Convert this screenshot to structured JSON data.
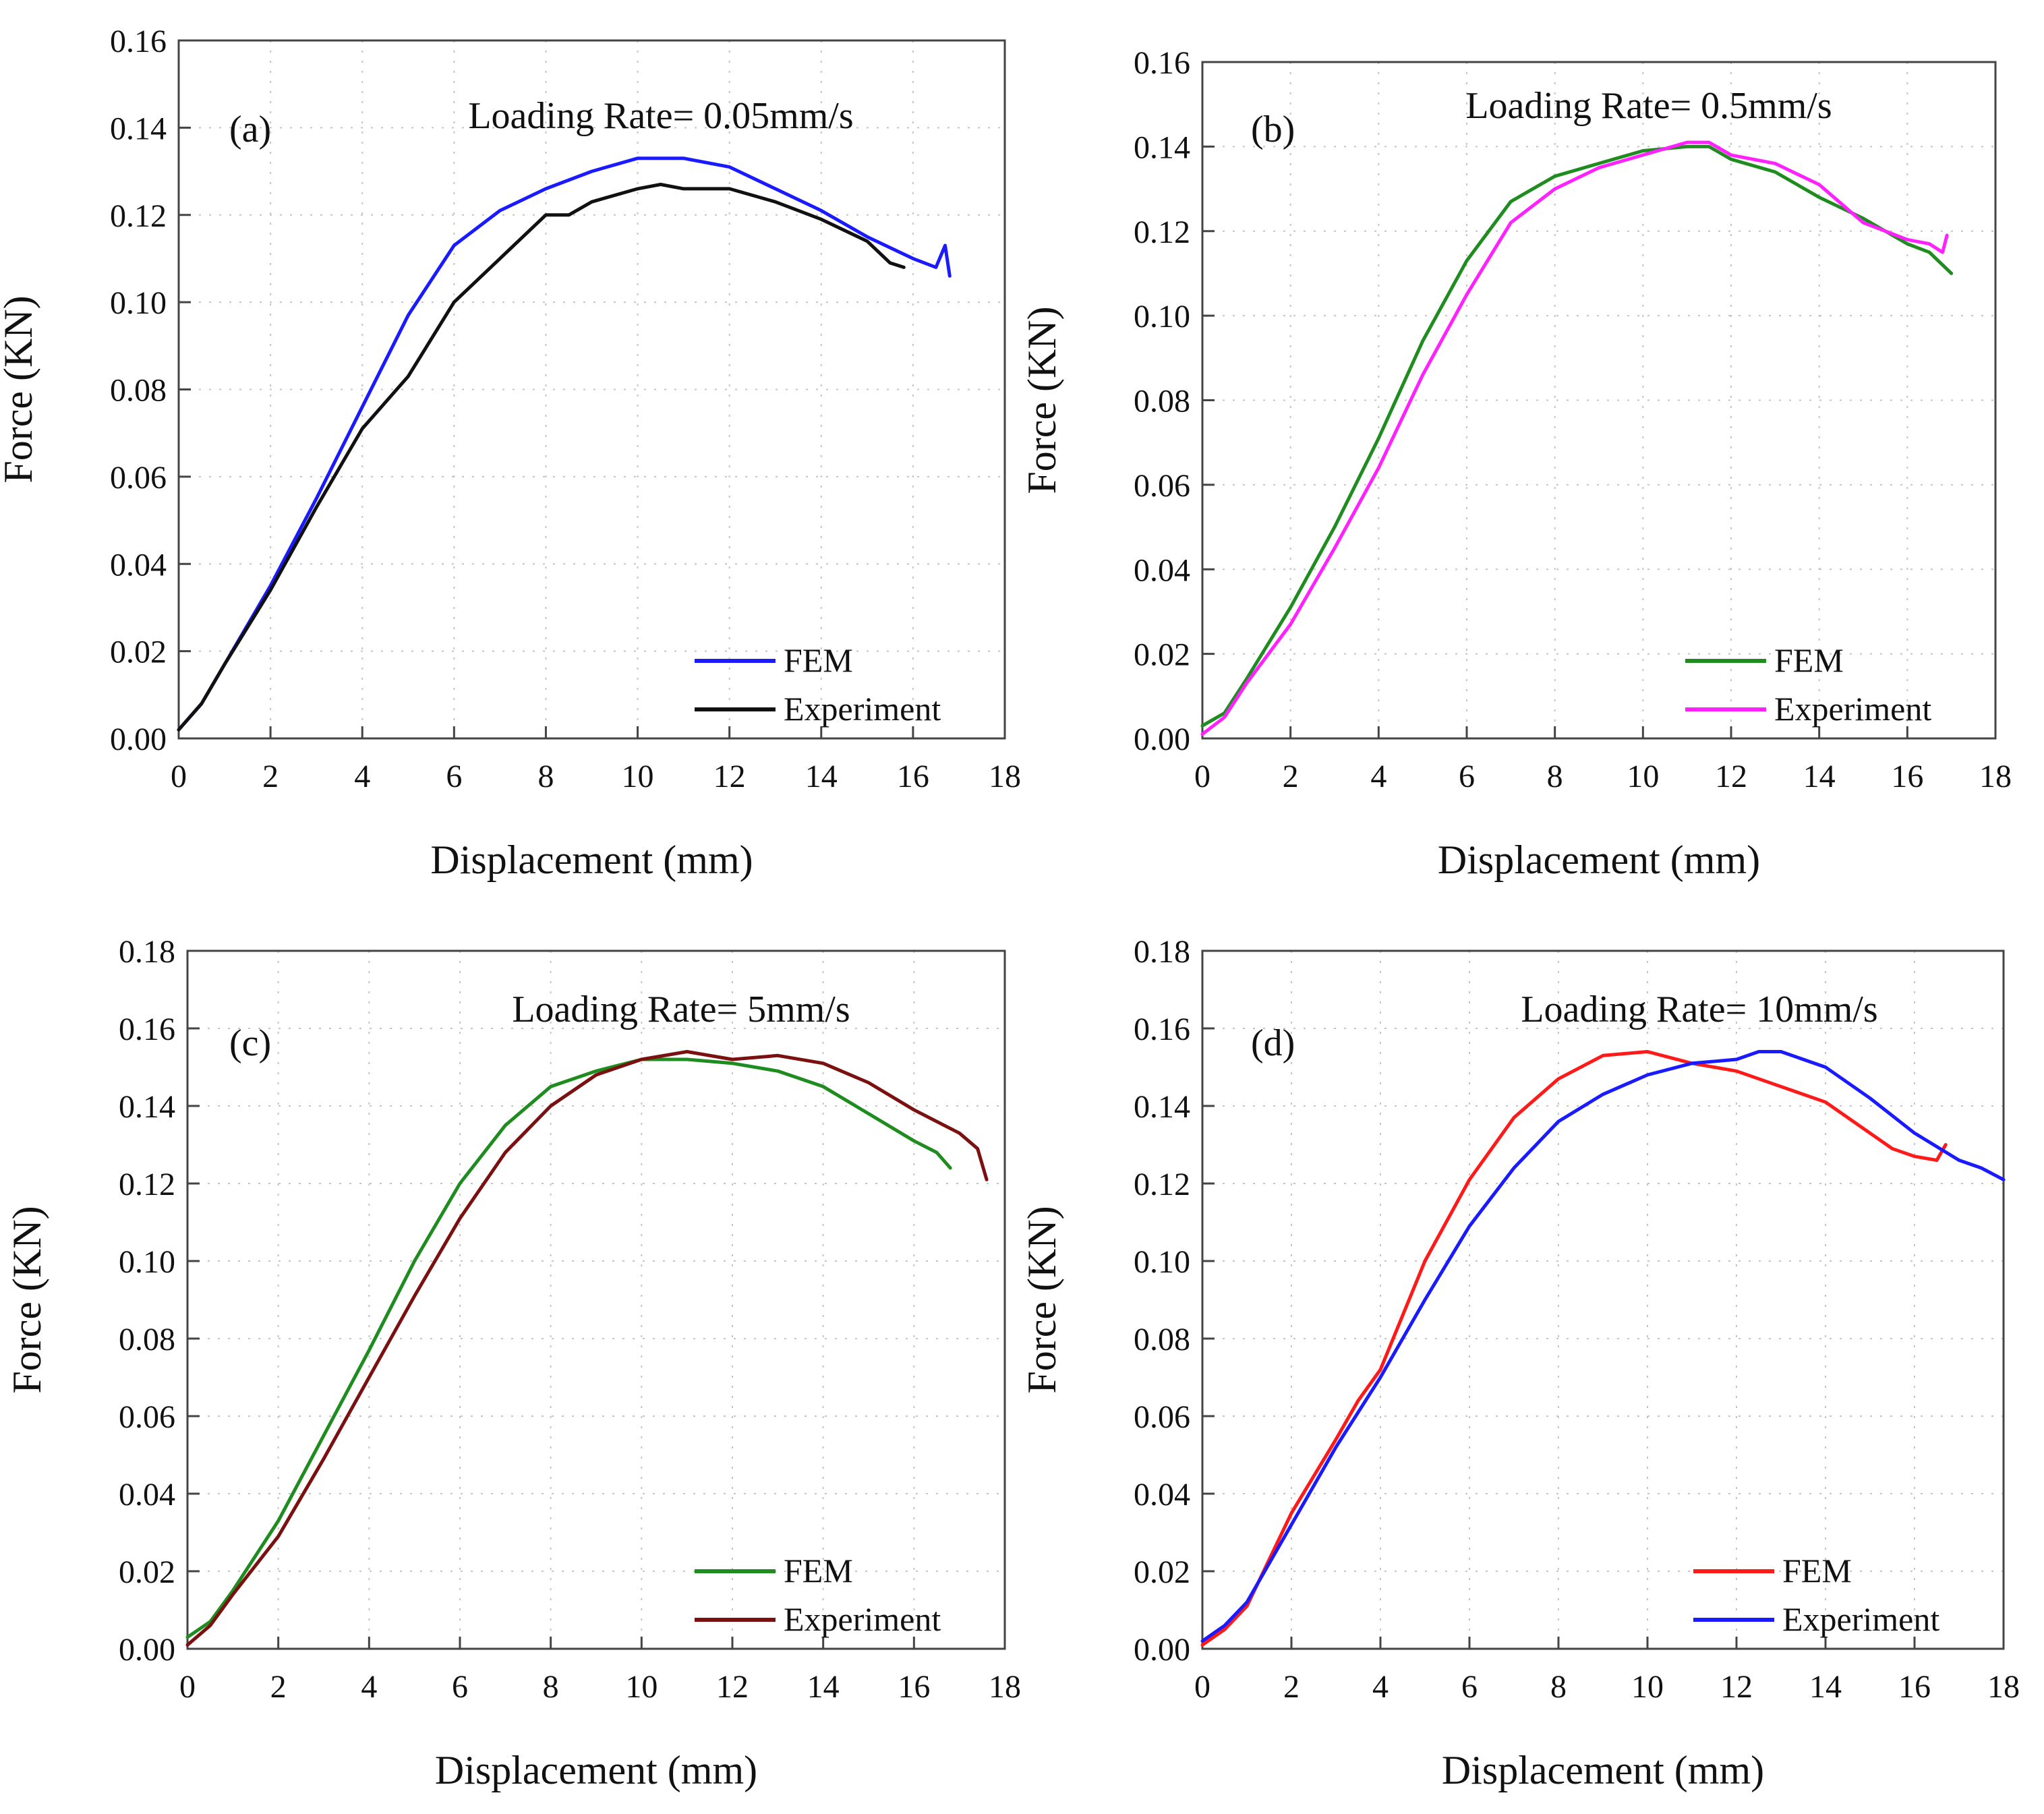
{
  "chart_data": [
    {
      "panel_label": "(a)",
      "type": "line",
      "title": "Loading Rate= 0.05mm/s",
      "xlabel": "Displacement (mm)",
      "ylabel": "Force (KN)",
      "xlim": [
        0,
        18
      ],
      "ylim": [
        0,
        0.16
      ],
      "xticks": [
        "0",
        "2",
        "4",
        "6",
        "8",
        "10",
        "12",
        "14",
        "16",
        "18"
      ],
      "yticks": [
        "0.00",
        "0.02",
        "0.04",
        "0.06",
        "0.08",
        "0.10",
        "0.12",
        "0.14",
        "0.16"
      ],
      "grid": true,
      "legend_position": "bottom-right",
      "series": [
        {
          "name": "FEM",
          "color": "#1a1aff",
          "x": [
            0,
            0.5,
            1,
            2,
            3,
            4,
            5,
            6,
            7,
            8,
            9,
            10,
            11,
            12,
            13,
            14,
            15,
            16,
            16.5,
            16.7,
            16.8
          ],
          "y": [
            0.002,
            0.008,
            0.017,
            0.035,
            0.055,
            0.076,
            0.097,
            0.113,
            0.121,
            0.126,
            0.13,
            0.133,
            0.133,
            0.131,
            0.126,
            0.121,
            0.115,
            0.11,
            0.108,
            0.113,
            0.106
          ]
        },
        {
          "name": "Experiment",
          "color": "#111111",
          "x": [
            0,
            0.5,
            1,
            2,
            3,
            4,
            5,
            6,
            7,
            8,
            8.5,
            9,
            10,
            10.5,
            11,
            12,
            13,
            14,
            15,
            15.5,
            15.8
          ],
          "y": [
            0.002,
            0.008,
            0.017,
            0.034,
            0.053,
            0.071,
            0.083,
            0.1,
            0.11,
            0.12,
            0.12,
            0.123,
            0.126,
            0.127,
            0.126,
            0.126,
            0.123,
            0.119,
            0.114,
            0.109,
            0.108
          ]
        }
      ]
    },
    {
      "panel_label": "(b)",
      "type": "line",
      "title": "Loading Rate= 0.5mm/s",
      "xlabel": "Displacement (mm)",
      "ylabel": "Force (KN)",
      "xlim": [
        0,
        18
      ],
      "ylim": [
        0,
        0.16
      ],
      "xticks": [
        "0",
        "2",
        "4",
        "6",
        "8",
        "10",
        "12",
        "14",
        "16",
        "18"
      ],
      "yticks": [
        "0.00",
        "0.02",
        "0.04",
        "0.06",
        "0.08",
        "0.10",
        "0.12",
        "0.14",
        "0.16"
      ],
      "grid": true,
      "legend_position": "bottom-right",
      "series": [
        {
          "name": "FEM",
          "color": "#1f8c1f",
          "x": [
            0,
            0.5,
            1,
            2,
            3,
            4,
            5,
            6,
            7,
            8,
            9,
            10,
            11,
            11.5,
            12,
            13,
            14,
            15,
            16,
            16.5,
            17
          ],
          "y": [
            0.003,
            0.006,
            0.014,
            0.031,
            0.05,
            0.071,
            0.094,
            0.113,
            0.127,
            0.133,
            0.136,
            0.139,
            0.14,
            0.14,
            0.137,
            0.134,
            0.128,
            0.123,
            0.117,
            0.115,
            0.11
          ]
        },
        {
          "name": "Experiment",
          "color": "#ff22ff",
          "x": [
            0,
            0.5,
            1,
            2,
            3,
            4,
            5,
            6,
            7,
            8,
            9,
            10,
            11,
            11.5,
            12,
            13,
            14,
            15,
            16,
            16.5,
            16.8,
            16.9
          ],
          "y": [
            0.001,
            0.005,
            0.013,
            0.027,
            0.045,
            0.064,
            0.086,
            0.105,
            0.122,
            0.13,
            0.135,
            0.138,
            0.141,
            0.141,
            0.138,
            0.136,
            0.131,
            0.122,
            0.118,
            0.117,
            0.115,
            0.119
          ]
        }
      ]
    },
    {
      "panel_label": "(c)",
      "type": "line",
      "title": "Loading Rate= 5mm/s",
      "xlabel": "Displacement (mm)",
      "ylabel": "Force (KN)",
      "xlim": [
        0,
        18
      ],
      "ylim": [
        0,
        0.18
      ],
      "xticks": [
        "0",
        "2",
        "4",
        "6",
        "8",
        "10",
        "12",
        "14",
        "16",
        "18"
      ],
      "yticks": [
        "0.00",
        "0.02",
        "0.04",
        "0.06",
        "0.08",
        "0.10",
        "0.12",
        "0.14",
        "0.16",
        "0.18"
      ],
      "grid": true,
      "legend_position": "bottom-right",
      "series": [
        {
          "name": "FEM",
          "color": "#1f8c1f",
          "x": [
            0,
            0.5,
            1,
            2,
            3,
            4,
            5,
            6,
            7,
            8,
            9,
            10,
            11,
            12,
            13,
            14,
            15,
            16,
            16.5,
            16.8
          ],
          "y": [
            0.003,
            0.007,
            0.015,
            0.033,
            0.055,
            0.077,
            0.1,
            0.12,
            0.135,
            0.145,
            0.149,
            0.152,
            0.152,
            0.151,
            0.149,
            0.145,
            0.138,
            0.131,
            0.128,
            0.124
          ]
        },
        {
          "name": "Experiment",
          "color": "#7a1010",
          "x": [
            0,
            0.5,
            1,
            2,
            3,
            4,
            5,
            6,
            7,
            8,
            9,
            10,
            11,
            12,
            13,
            14,
            15,
            16,
            17,
            17.4,
            17.6
          ],
          "y": [
            0.001,
            0.006,
            0.014,
            0.029,
            0.049,
            0.07,
            0.091,
            0.111,
            0.128,
            0.14,
            0.148,
            0.152,
            0.154,
            0.152,
            0.153,
            0.151,
            0.146,
            0.139,
            0.133,
            0.129,
            0.121
          ]
        }
      ]
    },
    {
      "panel_label": "(d)",
      "type": "line",
      "title": "Loading Rate= 10mm/s",
      "xlabel": "Displacement (mm)",
      "ylabel": "Force (KN)",
      "xlim": [
        0,
        18
      ],
      "ylim": [
        0,
        0.18
      ],
      "xticks": [
        "0",
        "2",
        "4",
        "6",
        "8",
        "10",
        "12",
        "14",
        "16",
        "18"
      ],
      "yticks": [
        "0.00",
        "0.02",
        "0.04",
        "0.06",
        "0.08",
        "0.10",
        "0.12",
        "0.14",
        "0.16",
        "0.18"
      ],
      "grid": true,
      "legend_position": "bottom-right",
      "series": [
        {
          "name": "FEM",
          "color": "#ff1a1a",
          "x": [
            0,
            0.5,
            1,
            2,
            3,
            3.5,
            4,
            5,
            6,
            7,
            8,
            9,
            10,
            11,
            12,
            13,
            14,
            15,
            15.5,
            16,
            16.5,
            16.7
          ],
          "y": [
            0.001,
            0.005,
            0.011,
            0.035,
            0.054,
            0.064,
            0.072,
            0.1,
            0.121,
            0.137,
            0.147,
            0.153,
            0.154,
            0.151,
            0.149,
            0.145,
            0.141,
            0.133,
            0.129,
            0.127,
            0.126,
            0.13
          ]
        },
        {
          "name": "Experiment",
          "color": "#1a1aff",
          "x": [
            0,
            0.5,
            1,
            2,
            3,
            4,
            5,
            6,
            7,
            8,
            9,
            10,
            11,
            12,
            12.5,
            13,
            14,
            15,
            16,
            17,
            17.5,
            18
          ],
          "y": [
            0.002,
            0.006,
            0.012,
            0.032,
            0.052,
            0.07,
            0.09,
            0.109,
            0.124,
            0.136,
            0.143,
            0.148,
            0.151,
            0.152,
            0.154,
            0.154,
            0.15,
            0.142,
            0.133,
            0.126,
            0.124,
            0.121
          ]
        }
      ]
    }
  ]
}
